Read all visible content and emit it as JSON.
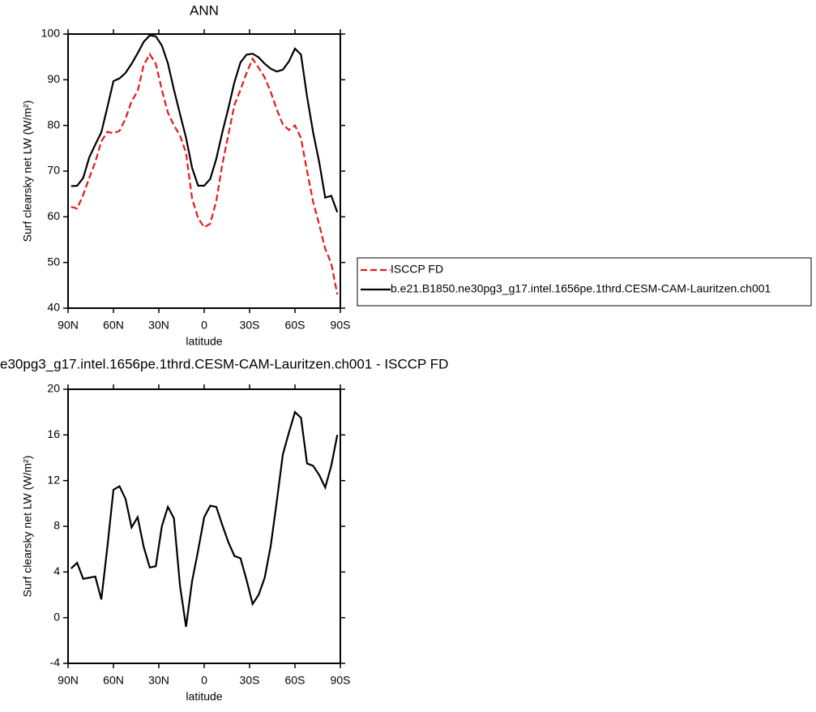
{
  "chart_data": [
    {
      "type": "line",
      "title": "ANN",
      "xlabel": "latitude",
      "ylabel": "Surf clearsky net LW (W/m²)",
      "x": [
        88,
        84,
        80,
        76,
        72,
        68,
        64,
        60,
        56,
        52,
        48,
        44,
        40,
        36,
        32,
        28,
        24,
        20,
        16,
        12,
        8,
        4,
        0,
        -4,
        -8,
        -12,
        -16,
        -20,
        -24,
        -28,
        -32,
        -36,
        -40,
        -44,
        -48,
        -52,
        -56,
        -60,
        -64,
        -68,
        -72,
        -76,
        -80,
        -84,
        -88
      ],
      "series": [
        {
          "name": "ISCCP FD",
          "color": "#e41a1c",
          "line_style": "dashed",
          "values": [
            62.2,
            61.8,
            64.8,
            68.5,
            72,
            76.5,
            78.6,
            78.3,
            78.8,
            81.5,
            85.3,
            87.5,
            93.2,
            95.6,
            93.5,
            87.8,
            82.8,
            80,
            77.8,
            74,
            64,
            59.7,
            57.7,
            58.5,
            63.5,
            71.5,
            78,
            84.5,
            87.8,
            91.5,
            94.6,
            92.6,
            90.5,
            87.3,
            83.5,
            80.2,
            79,
            80,
            77.2,
            70,
            63.3,
            58.3,
            53,
            49.8,
            43
          ]
        },
        {
          "name": "b.e21.B1850.ne30pg3_g17.intel.1656pe.1thrd.CESM-CAM-Lauritzen.ch001",
          "color": "#000000",
          "line_style": "solid",
          "values": [
            66.7,
            66.8,
            68.5,
            73,
            75.8,
            78.5,
            84,
            89.7,
            90.3,
            91.5,
            93.5,
            95.8,
            98.3,
            99.7,
            99.5,
            97.5,
            93.6,
            87.8,
            82.5,
            77.3,
            70.7,
            66.8,
            66.8,
            68.3,
            72.7,
            78.5,
            83.8,
            89.5,
            93.8,
            95.5,
            95.7,
            94.9,
            93.5,
            92.4,
            91.8,
            92.2,
            94,
            96.8,
            95.5,
            86.3,
            78.5,
            72,
            64.2,
            64.6,
            61
          ]
        }
      ],
      "xlim": [
        90,
        -90
      ],
      "xticks": [
        {
          "value": 90,
          "label": "90N"
        },
        {
          "value": 60,
          "label": "60N"
        },
        {
          "value": 30,
          "label": "30N"
        },
        0,
        {
          "value": -30,
          "label": "30S"
        },
        {
          "value": -60,
          "label": "60S"
        },
        {
          "value": -90,
          "label": "90S"
        }
      ],
      "ylim": [
        40,
        100
      ],
      "yticks": [
        40,
        50,
        60,
        70,
        80,
        90,
        100
      ],
      "legend": "right"
    },
    {
      "type": "line",
      "title": "e30pg3_g17.intel.1656pe.1thrd.CESM-CAM-Lauritzen.ch001 - ISCCP FD",
      "xlabel": "latitude",
      "ylabel": "Surf clearsky net LW (W/m²)",
      "x": [
        88,
        84,
        80,
        76,
        72,
        68,
        64,
        60,
        56,
        52,
        48,
        44,
        40,
        36,
        32,
        28,
        24,
        20,
        16,
        12,
        8,
        4,
        0,
        -4,
        -8,
        -12,
        -16,
        -20,
        -24,
        -28,
        -32,
        -36,
        -40,
        -44,
        -48,
        -52,
        -56,
        -60,
        -64,
        -68,
        -72,
        -76,
        -80,
        -84,
        -88
      ],
      "series": [
        {
          "color": "#000000",
          "line_style": "solid",
          "values": [
            4.3,
            4.8,
            3.4,
            3.5,
            3.6,
            1.6,
            6.2,
            11.2,
            11.5,
            10.4,
            7.9,
            8.8,
            6.2,
            4.4,
            4.5,
            8,
            9.7,
            8.7,
            2.8,
            -0.8,
            3.2,
            5.9,
            8.8,
            9.8,
            9.7,
            8.1,
            6.6,
            5.4,
            5.2,
            3.3,
            1.2,
            2,
            3.5,
            6.3,
            10.2,
            14.3,
            16.2,
            18,
            17.5,
            13.5,
            13.3,
            12.5,
            11.4,
            13.3,
            16
          ]
        }
      ],
      "xlim": [
        90,
        -90
      ],
      "xticks": [
        {
          "value": 90,
          "label": "90N"
        },
        {
          "value": 60,
          "label": "60N"
        },
        {
          "value": 30,
          "label": "30N"
        },
        0,
        {
          "value": -30,
          "label": "30S"
        },
        {
          "value": -60,
          "label": "60S"
        },
        {
          "value": -90,
          "label": "90S"
        }
      ],
      "ylim": [
        -4,
        20
      ],
      "yticks": [
        -4,
        0,
        4,
        8,
        12,
        16,
        20
      ]
    }
  ]
}
